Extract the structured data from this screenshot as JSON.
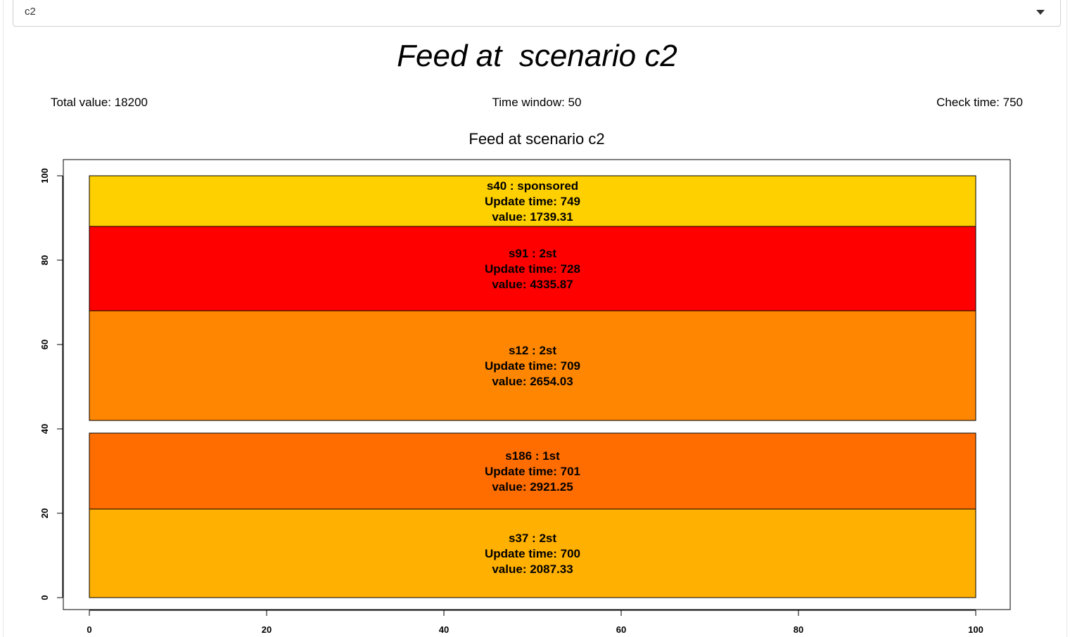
{
  "scenario_select": {
    "value": "c2"
  },
  "page_title": "Feed at  scenario c2",
  "stats": {
    "total_value": "Total value: 18200",
    "time_window": "Time window: 50",
    "check_time": "Check time: 750"
  },
  "chart_data": {
    "type": "rect",
    "title": "Feed at scenario c2",
    "xlabel": "",
    "ylabel": "",
    "xlim": [
      0,
      100
    ],
    "ylim": [
      0,
      100
    ],
    "x_ticks": [
      "0",
      "20",
      "40",
      "60",
      "80",
      "100"
    ],
    "y_ticks": [
      "0",
      "20",
      "40",
      "60",
      "80",
      "100"
    ],
    "rectangles": [
      {
        "x0": 0,
        "x1": 100,
        "y0": 0,
        "y1": 21,
        "color": "#FFB000",
        "lines": [
          "s37 :  2st",
          "Update time: 700",
          "value: 2087.33"
        ]
      },
      {
        "x0": 0,
        "x1": 100,
        "y0": 21,
        "y1": 39,
        "color": "#FF6D00",
        "lines": [
          "s186 :  1st",
          "Update time: 701",
          "value: 2921.25"
        ]
      },
      {
        "x0": 0,
        "x1": 100,
        "y0": 42,
        "y1": 68,
        "color": "#FF8600",
        "lines": [
          "s12 :  2st",
          "Update time: 709",
          "value: 2654.03"
        ]
      },
      {
        "x0": 0,
        "x1": 100,
        "y0": 68,
        "y1": 88,
        "color": "#FF0000",
        "lines": [
          "s91 :  2st",
          "Update time: 728",
          "value: 4335.87"
        ]
      },
      {
        "x0": 0,
        "x1": 100,
        "y0": 88,
        "y1": 100,
        "color": "#FFD000",
        "lines": [
          "s40 :  sponsored",
          "Update time: 749",
          "value: 1739.31"
        ]
      }
    ]
  }
}
